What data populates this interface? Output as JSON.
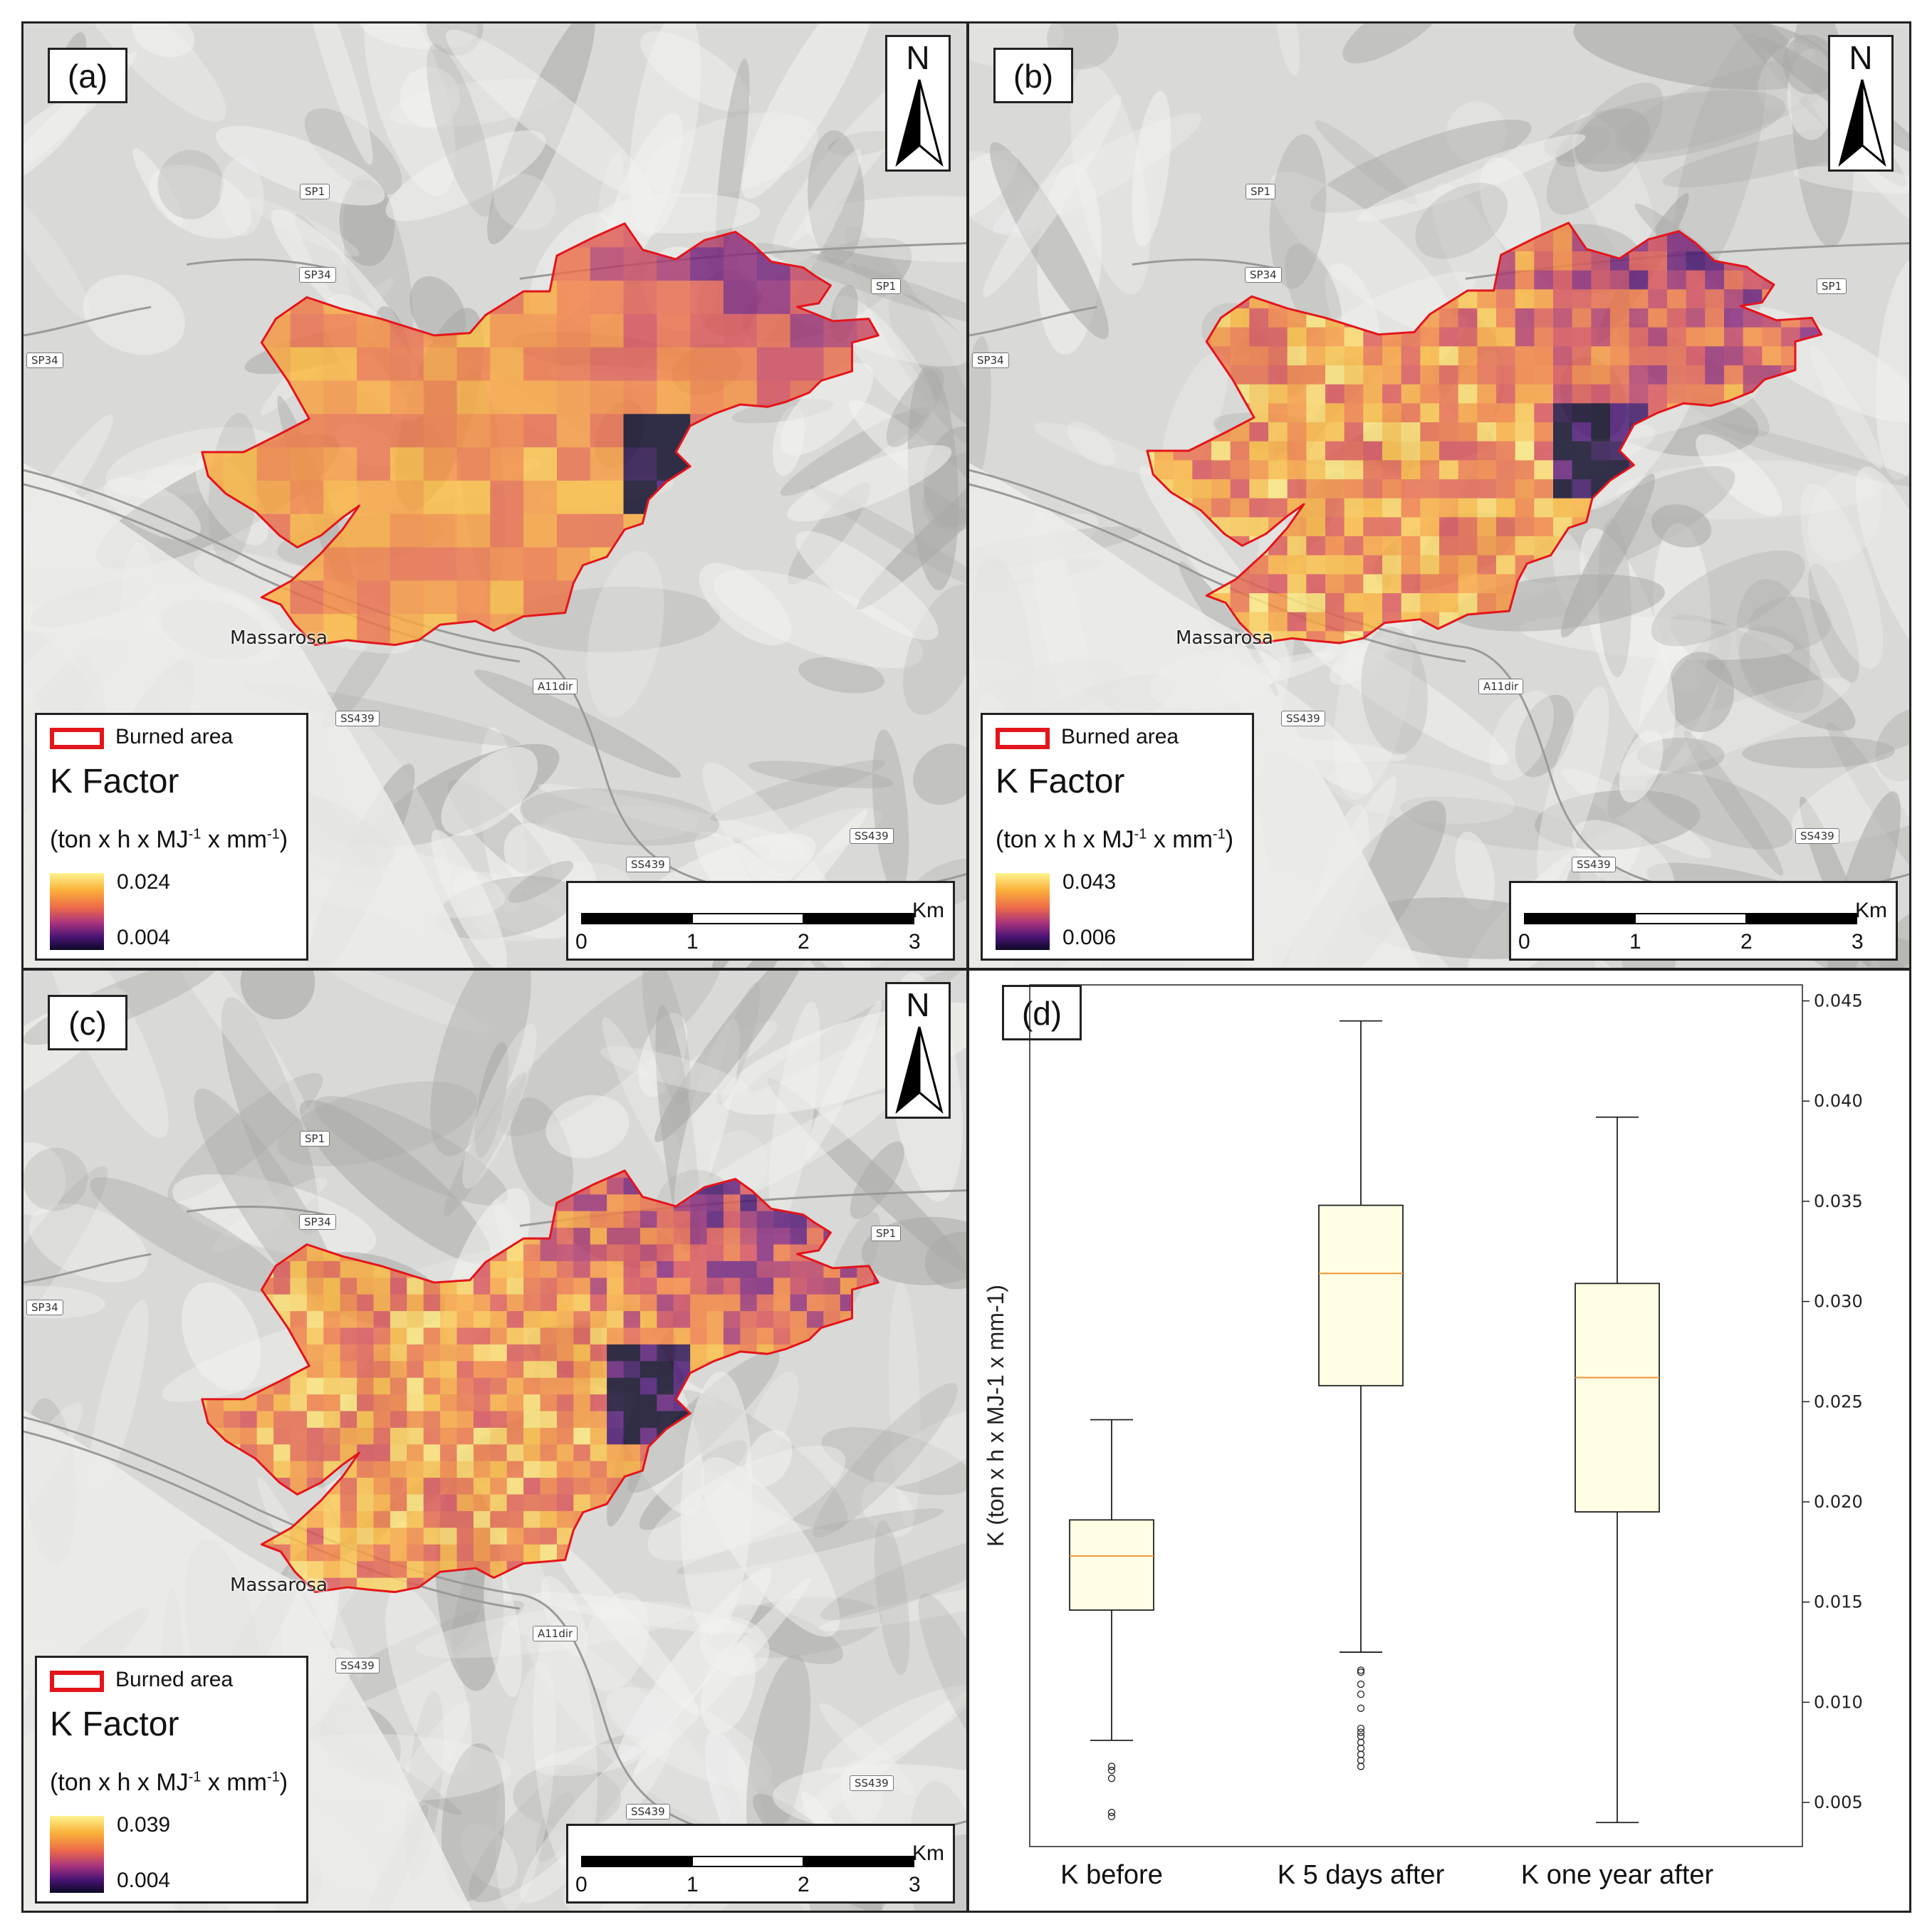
{
  "panels": [
    {
      "label": "(a)",
      "north": "N",
      "burned_label": "Burned area",
      "factor_title": "K Factor",
      "unit_prefix": "(ton x h x MJ",
      "unit_exp1": "-1",
      "unit_mid": " x mm",
      "unit_exp2": "-1",
      "unit_suffix": ")",
      "legend_max": "0.024",
      "legend_min": "0.004",
      "seed": 3
    },
    {
      "label": "(b)",
      "north": "N",
      "burned_label": "Burned area",
      "factor_title": "K Factor",
      "unit_prefix": "(ton x h x MJ",
      "unit_exp1": "-1",
      "unit_mid": " x mm",
      "unit_exp2": "-1",
      "unit_suffix": ")",
      "legend_max": "0.043",
      "legend_min": "0.006",
      "seed": 7
    },
    {
      "label": "(c)",
      "north": "N",
      "burned_label": "Burned area",
      "factor_title": "K Factor",
      "unit_prefix": "(ton x h x MJ",
      "unit_exp1": "-1",
      "unit_mid": " x mm",
      "unit_exp2": "-1",
      "unit_suffix": ")",
      "legend_max": "0.039",
      "legend_min": "0.004",
      "seed": 11
    }
  ],
  "map_labels": {
    "roads": [
      "SP1",
      "SP34",
      "SP34",
      "SP1",
      "A11dir",
      "SS439",
      "SS439",
      "SS439"
    ],
    "town": "Massarosa"
  },
  "scalebar": {
    "unit": "Km",
    "ticks": [
      "0",
      "1",
      "2",
      "3"
    ]
  },
  "chart_data": {
    "type": "box",
    "label": "(d)",
    "categories": [
      "K before",
      "K 5 days after",
      "K one year after"
    ],
    "ylabel": "K (ton x h x MJ-1 x mm-1)",
    "ylim": [
      0.0028,
      0.0458
    ],
    "yticks": [
      "0.005",
      "0.010",
      "0.015",
      "0.020",
      "0.025",
      "0.030",
      "0.035",
      "0.040",
      "0.045"
    ],
    "ytick_values": [
      0.005,
      0.01,
      0.015,
      0.02,
      0.025,
      0.03,
      0.035,
      0.04,
      0.045
    ],
    "boxes": [
      {
        "whisker_low": 0.0081,
        "q1": 0.0146,
        "median": 0.0173,
        "q3": 0.0191,
        "whisker_high": 0.0241,
        "outliers": [
          0.0068,
          0.0066,
          0.0062,
          0.0045,
          0.0043
        ]
      },
      {
        "whisker_low": 0.0125,
        "q1": 0.0258,
        "median": 0.0314,
        "q3": 0.0348,
        "whisker_high": 0.044,
        "outliers": [
          0.0116,
          0.0115,
          0.0109,
          0.0104,
          0.0097,
          0.0087,
          0.0085,
          0.0083,
          0.008,
          0.0077,
          0.0074,
          0.0071,
          0.0068
        ]
      },
      {
        "whisker_low": 0.004,
        "q1": 0.0195,
        "median": 0.0262,
        "q3": 0.0309,
        "whisker_high": 0.0392,
        "outliers": []
      }
    ],
    "box_color": "#fffde3",
    "median_color": "#f1963e"
  }
}
